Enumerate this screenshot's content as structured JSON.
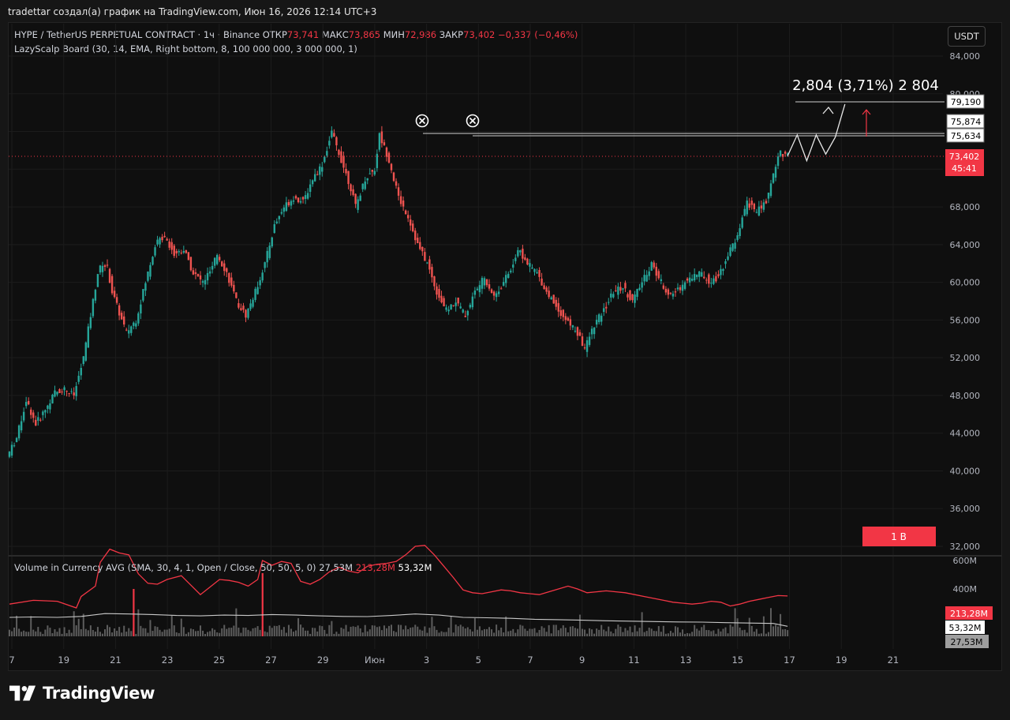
{
  "header": {
    "text": "tradettar создал(а) график на TradingView.com, Июн 16, 2026 12:14 UTC+3"
  },
  "legend": {
    "symbol": "HYPE / TetherUS PERPETUAL CONTRACT · 1ч · Binance",
    "open_label": "ОТКР",
    "open": "73,741",
    "high_label": "МАКС",
    "high": "73,865",
    "low_label": "МИН",
    "low": "72,986",
    "close_label": "ЗАКР",
    "close": "73,402",
    "change": "−0,337 (−0,46%)",
    "indicator": "LazyScalp Board (30, 14, EMA, Right bottom, 8, 100 000 000, 3 000 000, 1)"
  },
  "volume_legend": {
    "label": "Volume in Currency AVG (SMA, 30, 4, 1, Open / Close, 50, 50, 5, 0)",
    "v1": "27,53M",
    "v2": "213,28M",
    "v3": "53,32M"
  },
  "currency_button": "USDT",
  "badge_text": "1 B",
  "projection_label": "2,804 (3,71%) 2 804",
  "price_labels": {
    "l1": "79,190",
    "l2": "75,874",
    "l3": "75,634",
    "current": "73,402",
    "countdown": "45:41"
  },
  "volume_labels": {
    "red": "213,28M",
    "white": "53,32M",
    "gray": "27,53M"
  },
  "brand": "TradingView",
  "colors": {
    "up": "#26a69a",
    "down": "#ef5350",
    "accent_red": "#f23645",
    "background": "#0f0f0f"
  },
  "chart_data": {
    "type": "candlestick",
    "ylim": [
      32000,
      86000
    ],
    "yticks": [
      "84,000",
      "80,000",
      "76,000",
      "72,000",
      "68,000",
      "64,000",
      "60,000",
      "56,000",
      "52,000",
      "48,000",
      "44,000",
      "40,000",
      "36,000",
      "32,000"
    ],
    "xticks": [
      "7",
      "19",
      "21",
      "23",
      "25",
      "27",
      "29",
      "Июн",
      "3",
      "5",
      "7",
      "9",
      "11",
      "13",
      "15",
      "17",
      "19",
      "21"
    ],
    "volume_ticks": [
      "600M",
      "400M"
    ],
    "price_path": [
      [
        0,
        41500
      ],
      [
        2,
        43500
      ],
      [
        4,
        47500
      ],
      [
        6,
        45000
      ],
      [
        8,
        46500
      ],
      [
        10,
        48300
      ],
      [
        12,
        48700
      ],
      [
        14,
        48000
      ],
      [
        16,
        52000
      ],
      [
        17,
        55000
      ],
      [
        18,
        58000
      ],
      [
        19,
        61000
      ],
      [
        20,
        62000
      ],
      [
        21,
        61500
      ],
      [
        22,
        59000
      ],
      [
        24,
        56000
      ],
      [
        25,
        54700
      ],
      [
        27,
        56000
      ],
      [
        29,
        60000
      ],
      [
        31,
        64000
      ],
      [
        33,
        65000
      ],
      [
        35,
        63000
      ],
      [
        37,
        63500
      ],
      [
        39,
        61000
      ],
      [
        41,
        60000
      ],
      [
        43,
        61500
      ],
      [
        44,
        63000
      ],
      [
        46,
        61000
      ],
      [
        48,
        58000
      ],
      [
        50,
        56500
      ],
      [
        52,
        59000
      ],
      [
        54,
        62000
      ],
      [
        56,
        66000
      ],
      [
        58,
        68000
      ],
      [
        60,
        69000
      ],
      [
        62,
        68500
      ],
      [
        64,
        71000
      ],
      [
        66,
        72500
      ],
      [
        68,
        75874
      ],
      [
        70,
        73000
      ],
      [
        72,
        70000
      ],
      [
        73,
        68000
      ],
      [
        75,
        71000
      ],
      [
        77,
        72000
      ],
      [
        78,
        75634
      ],
      [
        80,
        73000
      ],
      [
        82,
        69000
      ],
      [
        84,
        67000
      ],
      [
        86,
        64000
      ],
      [
        88,
        62000
      ],
      [
        90,
        59000
      ],
      [
        92,
        57000
      ],
      [
        94,
        58000
      ],
      [
        96,
        56500
      ],
      [
        98,
        59000
      ],
      [
        100,
        60500
      ],
      [
        102,
        58500
      ],
      [
        104,
        60000
      ],
      [
        106,
        62000
      ],
      [
        107,
        63500
      ],
      [
        109,
        62000
      ],
      [
        111,
        61000
      ],
      [
        113,
        59000
      ],
      [
        115,
        57500
      ],
      [
        117,
        56000
      ],
      [
        119,
        55000
      ],
      [
        121,
        53000
      ],
      [
        123,
        55500
      ],
      [
        125,
        57000
      ],
      [
        127,
        59000
      ],
      [
        129,
        59500
      ],
      [
        131,
        58000
      ],
      [
        133,
        60000
      ],
      [
        135,
        62000
      ],
      [
        137,
        60000
      ],
      [
        139,
        58500
      ],
      [
        141,
        59500
      ],
      [
        143,
        60500
      ],
      [
        145,
        61000
      ],
      [
        147,
        60200
      ],
      [
        149,
        60500
      ],
      [
        151,
        63000
      ],
      [
        153,
        64800
      ],
      [
        155,
        68500
      ],
      [
        157,
        67500
      ],
      [
        159,
        68500
      ],
      [
        161,
        72500
      ],
      [
        162,
        73900
      ],
      [
        163,
        73402
      ]
    ],
    "volume_avg_red": [
      [
        0,
        170
      ],
      [
        5,
        190
      ],
      [
        10,
        185
      ],
      [
        14,
        150
      ],
      [
        15,
        210
      ],
      [
        18,
        265
      ],
      [
        19,
        390
      ],
      [
        21,
        460
      ],
      [
        23,
        440
      ],
      [
        25,
        430
      ],
      [
        27,
        330
      ],
      [
        29,
        280
      ],
      [
        31,
        275
      ],
      [
        33,
        300
      ],
      [
        36,
        320
      ],
      [
        38,
        270
      ],
      [
        40,
        220
      ],
      [
        42,
        260
      ],
      [
        44,
        300
      ],
      [
        46,
        295
      ],
      [
        48,
        285
      ],
      [
        50,
        265
      ],
      [
        52,
        300
      ],
      [
        53,
        400
      ],
      [
        55,
        375
      ],
      [
        57,
        395
      ],
      [
        59,
        385
      ],
      [
        61,
        290
      ],
      [
        63,
        275
      ],
      [
        65,
        300
      ],
      [
        67,
        340
      ],
      [
        69,
        365
      ],
      [
        71,
        345
      ],
      [
        73,
        335
      ],
      [
        75,
        370
      ],
      [
        77,
        380
      ],
      [
        79,
        385
      ],
      [
        81,
        395
      ],
      [
        83,
        430
      ],
      [
        85,
        475
      ],
      [
        87,
        480
      ],
      [
        89,
        430
      ],
      [
        91,
        370
      ],
      [
        93,
        310
      ],
      [
        95,
        245
      ],
      [
        97,
        230
      ],
      [
        99,
        225
      ],
      [
        101,
        235
      ],
      [
        103,
        245
      ],
      [
        105,
        240
      ],
      [
        107,
        230
      ],
      [
        109,
        225
      ],
      [
        111,
        220
      ],
      [
        113,
        235
      ],
      [
        115,
        250
      ],
      [
        117,
        265
      ],
      [
        119,
        250
      ],
      [
        121,
        230
      ],
      [
        123,
        235
      ],
      [
        125,
        240
      ],
      [
        127,
        235
      ],
      [
        129,
        230
      ],
      [
        131,
        220
      ],
      [
        133,
        210
      ],
      [
        135,
        200
      ],
      [
        137,
        190
      ],
      [
        139,
        180
      ],
      [
        141,
        175
      ],
      [
        143,
        170
      ],
      [
        145,
        175
      ],
      [
        147,
        185
      ],
      [
        149,
        180
      ],
      [
        151,
        160
      ],
      [
        153,
        170
      ],
      [
        155,
        185
      ],
      [
        157,
        195
      ],
      [
        159,
        205
      ],
      [
        161,
        215
      ],
      [
        163,
        213
      ]
    ],
    "volume_avg_white": [
      [
        0,
        100
      ],
      [
        5,
        102
      ],
      [
        10,
        100
      ],
      [
        15,
        105
      ],
      [
        20,
        120
      ],
      [
        25,
        118
      ],
      [
        30,
        115
      ],
      [
        35,
        110
      ],
      [
        40,
        108
      ],
      [
        45,
        112
      ],
      [
        50,
        110
      ],
      [
        55,
        115
      ],
      [
        60,
        112
      ],
      [
        65,
        108
      ],
      [
        70,
        105
      ],
      [
        75,
        104
      ],
      [
        80,
        110
      ],
      [
        85,
        118
      ],
      [
        90,
        112
      ],
      [
        95,
        100
      ],
      [
        100,
        98
      ],
      [
        105,
        95
      ],
      [
        110,
        90
      ],
      [
        115,
        88
      ],
      [
        120,
        85
      ],
      [
        125,
        82
      ],
      [
        130,
        80
      ],
      [
        135,
        78
      ],
      [
        140,
        76
      ],
      [
        145,
        75
      ],
      [
        150,
        72
      ],
      [
        155,
        70
      ],
      [
        160,
        68
      ],
      [
        163,
        53
      ]
    ],
    "projection_path": [
      [
        163,
        73402
      ],
      [
        165,
        75634
      ],
      [
        167,
        72900
      ],
      [
        169,
        75634
      ],
      [
        171,
        73600
      ],
      [
        173,
        75400
      ],
      [
        175,
        78900
      ]
    ],
    "levels": [
      75874,
      75634,
      79190,
      73402
    ]
  }
}
